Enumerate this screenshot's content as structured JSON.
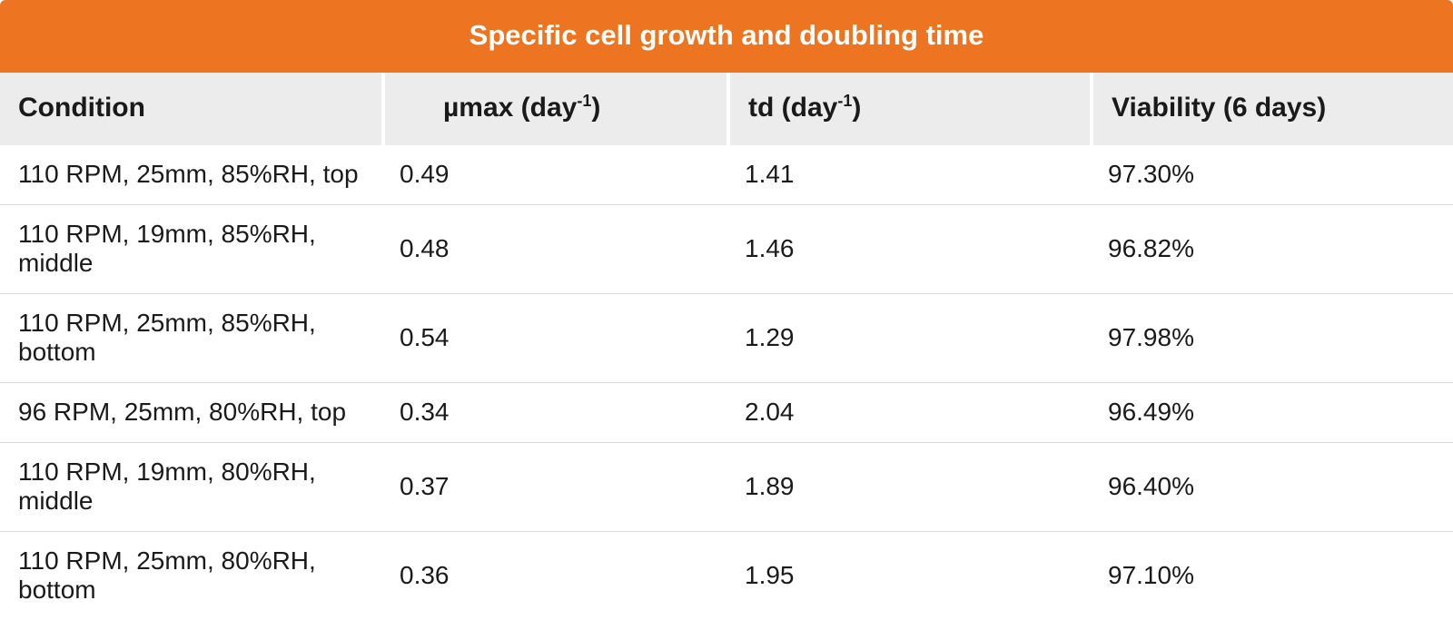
{
  "colors": {
    "title_bg": "#ed7420",
    "title_fg": "#ffffff",
    "header_bg": "#ececec",
    "header_fg": "#1a1a1a",
    "body_fg": "#1a1a1a",
    "row_border": "#d9d9d9"
  },
  "table": {
    "title": "Specific cell growth and doubling time",
    "columns": {
      "condition": {
        "label": "Condition"
      },
      "umax": {
        "prefix": "µmax (day",
        "sup": "-1",
        "suffix": ")"
      },
      "td": {
        "prefix": "td (day",
        "sup": "-1",
        "suffix": ")"
      },
      "viability": {
        "label": "Viability (6 days)"
      }
    },
    "rows": [
      {
        "condition": "110 RPM, 25mm, 85%RH, top",
        "umax": "0.49",
        "td": "1.41",
        "viability": "97.30%"
      },
      {
        "condition": "110 RPM, 19mm, 85%RH, middle",
        "umax": "0.48",
        "td": "1.46",
        "viability": "96.82%"
      },
      {
        "condition": "110 RPM, 25mm, 85%RH, bottom",
        "umax": "0.54",
        "td": "1.29",
        "viability": "97.98%"
      },
      {
        "condition": "96 RPM, 25mm, 80%RH, top",
        "umax": "0.34",
        "td": "2.04",
        "viability": "96.49%"
      },
      {
        "condition": "110 RPM, 19mm, 80%RH, middle",
        "umax": "0.37",
        "td": "1.89",
        "viability": "96.40%"
      },
      {
        "condition": "110 RPM, 25mm, 80%RH, bottom",
        "umax": "0.36",
        "td": "1.95",
        "viability": "97.10%"
      }
    ]
  }
}
